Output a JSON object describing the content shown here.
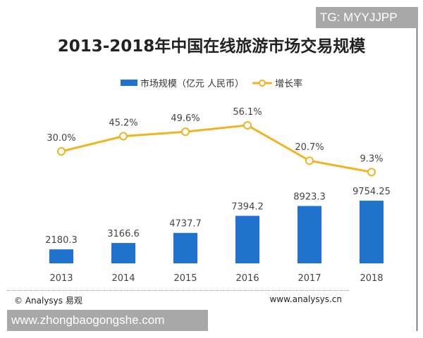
{
  "watermark_top": "TG: MYYJJPP",
  "watermark_bottom": "www.zhongbaogongshe.com",
  "footer": {
    "left": "© Analysys 易观",
    "right": "www.analysys.cn"
  },
  "chart_data": {
    "type": "bar+line",
    "title": "2013-2018年中国在线旅游市场交易规模",
    "categories": [
      "2013",
      "2014",
      "2015",
      "2016",
      "2017",
      "2018"
    ],
    "series": [
      {
        "name": "市场规模（亿元 人民币）",
        "type": "bar",
        "color": "#1f73cd",
        "values": [
          2180.3,
          3166.6,
          4737.7,
          7394.2,
          8923.3,
          9754.25
        ],
        "labels": [
          "2180.3",
          "3166.6",
          "4737.7",
          "7394.2",
          "8923.3",
          "9754.25"
        ]
      },
      {
        "name": "增长率",
        "type": "line",
        "color": "#f0b323",
        "values": [
          30.0,
          45.2,
          49.6,
          56.1,
          20.7,
          9.3
        ],
        "labels": [
          "30.0%",
          "45.2%",
          "49.6%",
          "56.1%",
          "20.7%",
          "9.3%"
        ]
      }
    ],
    "legend": "top"
  }
}
